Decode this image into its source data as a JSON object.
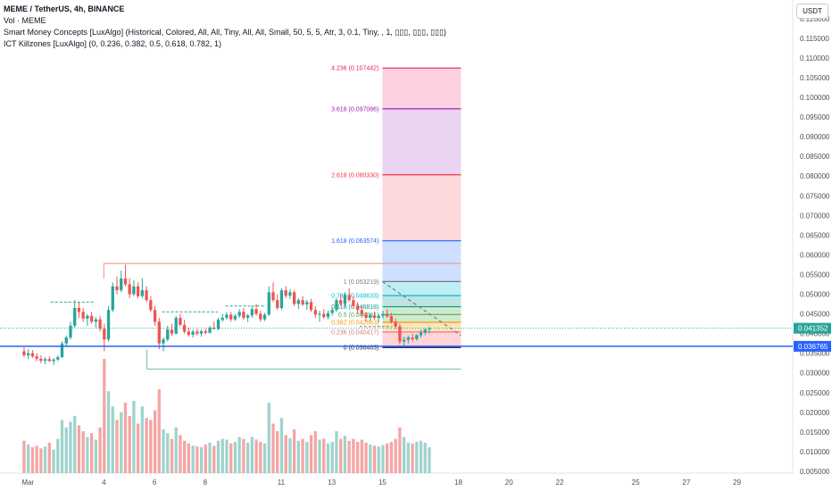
{
  "legend": {
    "symbol_line": "MEME / TetherUS, 4h, BINANCE",
    "vol_line": "Vol · MEME",
    "smc_line": "Smart Money Concepts [LuxAlgo] (Historical, Colored, All, All, Tiny, All, All, Small, 50, 5, 5, Atr, 3, 0.1, Tiny, , 1, ▯▯▯, ▯▯▯, ▯▯▯)",
    "ict_line": "ICT Killzones [LuxAlgo] (0, 0.236, 0.382, 0.5, 0.618, 0.782, 1)"
  },
  "currency_button": "USDT",
  "colors": {
    "up": "#26a69a",
    "down": "#ef5350",
    "vol_up": "#9fd3cd",
    "vol_down": "#f5a5a3",
    "price_tag": "#26a69a",
    "blue_line": "#2962ff"
  },
  "chart_data": {
    "type": "candlestick",
    "ylim": [
      0.005,
      0.122
    ],
    "y_ticks": [
      0.005,
      0.01,
      0.015,
      0.02,
      0.025,
      0.03,
      0.035,
      0.04,
      0.045,
      0.05,
      0.055,
      0.06,
      0.065,
      0.07,
      0.075,
      0.08,
      0.085,
      0.09,
      0.095,
      0.1,
      0.105,
      0.11,
      0.115,
      0.12
    ],
    "y_tick_labels": [
      "0.005000",
      "0.010000",
      "0.015000",
      "0.020000",
      "0.025000",
      "0.030000",
      "0.035000",
      "0.040000",
      "0.045000",
      "0.050000",
      "0.055000",
      "0.060000",
      "0.065000",
      "0.070000",
      "0.075000",
      "0.080000",
      "0.085000",
      "0.090000",
      "0.095000",
      "0.100000",
      "0.105000",
      "0.110000",
      "0.115000",
      "0.120000"
    ],
    "x_axis_labels": [
      {
        "label": "Mar",
        "day": 0.0
      },
      {
        "label": "4",
        "day": 3.0
      },
      {
        "label": "6",
        "day": 5.0
      },
      {
        "label": "8",
        "day": 7.0
      },
      {
        "label": "11",
        "day": 10.0
      },
      {
        "label": "13",
        "day": 12.0
      },
      {
        "label": "15",
        "day": 14.0
      },
      {
        "label": "18",
        "day": 17.0
      },
      {
        "label": "20",
        "day": 19.0
      },
      {
        "label": "22",
        "day": 21.0
      },
      {
        "label": "25",
        "day": 24.0
      },
      {
        "label": "27",
        "day": 26.0
      },
      {
        "label": "29",
        "day": 28.0
      }
    ],
    "x_range_days": [
      -1.1,
      30.2
    ],
    "candle_interval_days": 0.1667,
    "ohlc": [
      [
        0.0355,
        0.0365,
        0.034,
        0.0345
      ],
      [
        0.0345,
        0.036,
        0.0335,
        0.035
      ],
      [
        0.035,
        0.0358,
        0.0338,
        0.0342
      ],
      [
        0.0342,
        0.035,
        0.033,
        0.0336
      ],
      [
        0.0336,
        0.0345,
        0.0325,
        0.0331
      ],
      [
        0.0331,
        0.034,
        0.0322,
        0.0335
      ],
      [
        0.0335,
        0.0342,
        0.0328,
        0.033
      ],
      [
        0.033,
        0.0338,
        0.032,
        0.0334
      ],
      [
        0.0334,
        0.0345,
        0.033,
        0.034
      ],
      [
        0.034,
        0.038,
        0.0338,
        0.0375
      ],
      [
        0.0375,
        0.0395,
        0.0368,
        0.039
      ],
      [
        0.039,
        0.043,
        0.0385,
        0.042
      ],
      [
        0.042,
        0.0485,
        0.0415,
        0.0465
      ],
      [
        0.0465,
        0.048,
        0.044,
        0.0455
      ],
      [
        0.0455,
        0.0465,
        0.043,
        0.0438
      ],
      [
        0.0438,
        0.045,
        0.042,
        0.0445
      ],
      [
        0.0445,
        0.0455,
        0.0425,
        0.043
      ],
      [
        0.043,
        0.0442,
        0.0415,
        0.0436
      ],
      [
        0.0436,
        0.0445,
        0.0405,
        0.0412
      ],
      [
        0.0412,
        0.0425,
        0.0355,
        0.0385
      ],
      [
        0.0385,
        0.047,
        0.038,
        0.046
      ],
      [
        0.046,
        0.053,
        0.0455,
        0.052
      ],
      [
        0.052,
        0.0545,
        0.05,
        0.051
      ],
      [
        0.051,
        0.056,
        0.0505,
        0.054
      ],
      [
        0.054,
        0.0575,
        0.052,
        0.0525
      ],
      [
        0.0525,
        0.054,
        0.049,
        0.05
      ],
      [
        0.05,
        0.0535,
        0.0495,
        0.052
      ],
      [
        0.052,
        0.053,
        0.049,
        0.0495
      ],
      [
        0.0495,
        0.054,
        0.049,
        0.051
      ],
      [
        0.051,
        0.052,
        0.048,
        0.0485
      ],
      [
        0.0485,
        0.0495,
        0.0455,
        0.046
      ],
      [
        0.046,
        0.047,
        0.042,
        0.043
      ],
      [
        0.043,
        0.044,
        0.036,
        0.0375
      ],
      [
        0.0375,
        0.039,
        0.0355,
        0.0385
      ],
      [
        0.0385,
        0.042,
        0.038,
        0.041
      ],
      [
        0.041,
        0.0425,
        0.0395,
        0.04
      ],
      [
        0.04,
        0.0445,
        0.0398,
        0.044
      ],
      [
        0.044,
        0.045,
        0.0418,
        0.0422
      ],
      [
        0.0422,
        0.0435,
        0.04,
        0.0405
      ],
      [
        0.0405,
        0.0415,
        0.0392,
        0.0397
      ],
      [
        0.0397,
        0.041,
        0.039,
        0.0405
      ],
      [
        0.0405,
        0.0412,
        0.0395,
        0.04
      ],
      [
        0.04,
        0.041,
        0.0392,
        0.0406
      ],
      [
        0.0406,
        0.0412,
        0.0398,
        0.0402
      ],
      [
        0.0402,
        0.042,
        0.04,
        0.0415
      ],
      [
        0.0415,
        0.043,
        0.041,
        0.0412
      ],
      [
        0.0412,
        0.044,
        0.0408,
        0.0435
      ],
      [
        0.0435,
        0.045,
        0.043,
        0.044
      ],
      [
        0.044,
        0.0455,
        0.0435,
        0.0448
      ],
      [
        0.0448,
        0.0455,
        0.043,
        0.0436
      ],
      [
        0.0436,
        0.045,
        0.0432,
        0.0445
      ],
      [
        0.0445,
        0.0462,
        0.044,
        0.0455
      ],
      [
        0.0455,
        0.0465,
        0.0435,
        0.044
      ],
      [
        0.044,
        0.045,
        0.043,
        0.0446
      ],
      [
        0.0446,
        0.047,
        0.044,
        0.0462
      ],
      [
        0.0462,
        0.0475,
        0.0445,
        0.045
      ],
      [
        0.045,
        0.0458,
        0.043,
        0.0436
      ],
      [
        0.0436,
        0.0452,
        0.0432,
        0.0448
      ],
      [
        0.0448,
        0.052,
        0.0445,
        0.0505
      ],
      [
        0.0505,
        0.053,
        0.048,
        0.0485
      ],
      [
        0.0485,
        0.05,
        0.046,
        0.0465
      ],
      [
        0.0465,
        0.0515,
        0.046,
        0.051
      ],
      [
        0.051,
        0.052,
        0.049,
        0.0496
      ],
      [
        0.0496,
        0.0512,
        0.0488,
        0.0505
      ],
      [
        0.0505,
        0.051,
        0.047,
        0.0475
      ],
      [
        0.0475,
        0.049,
        0.0462,
        0.0485
      ],
      [
        0.0485,
        0.0495,
        0.047,
        0.0474
      ],
      [
        0.0474,
        0.0486,
        0.046,
        0.048
      ],
      [
        0.048,
        0.0488,
        0.0455,
        0.046
      ],
      [
        0.046,
        0.047,
        0.044,
        0.0448
      ],
      [
        0.0448,
        0.0458,
        0.043,
        0.045
      ],
      [
        0.045,
        0.0462,
        0.0438,
        0.0442
      ],
      [
        0.0442,
        0.0458,
        0.0436,
        0.0452
      ],
      [
        0.0452,
        0.0466,
        0.0445,
        0.046
      ],
      [
        0.046,
        0.049,
        0.0455,
        0.0485
      ],
      [
        0.0485,
        0.05,
        0.047,
        0.0475
      ],
      [
        0.0475,
        0.0505,
        0.047,
        0.0498
      ],
      [
        0.0498,
        0.0515,
        0.048,
        0.0485
      ],
      [
        0.0485,
        0.0495,
        0.0465,
        0.047
      ],
      [
        0.047,
        0.048,
        0.045,
        0.046
      ],
      [
        0.046,
        0.0472,
        0.044,
        0.0448
      ],
      [
        0.0448,
        0.0455,
        0.043,
        0.044
      ],
      [
        0.044,
        0.0452,
        0.0432,
        0.0446
      ],
      [
        0.0446,
        0.0456,
        0.0436,
        0.044
      ],
      [
        0.044,
        0.045,
        0.0428,
        0.0445
      ],
      [
        0.0445,
        0.0458,
        0.0438,
        0.045
      ],
      [
        0.045,
        0.0462,
        0.044,
        0.0444
      ],
      [
        0.0444,
        0.0452,
        0.0425,
        0.043
      ],
      [
        0.043,
        0.0438,
        0.0412,
        0.0418
      ],
      [
        0.0418,
        0.0425,
        0.0372,
        0.038
      ],
      [
        0.038,
        0.0392,
        0.0365,
        0.0384
      ],
      [
        0.0384,
        0.0395,
        0.0375,
        0.039
      ],
      [
        0.039,
        0.04,
        0.038,
        0.0386
      ],
      [
        0.0386,
        0.0398,
        0.0382,
        0.0396
      ],
      [
        0.0396,
        0.041,
        0.039,
        0.0402
      ],
      [
        0.0402,
        0.0415,
        0.0396,
        0.041
      ],
      [
        0.041,
        0.0418,
        0.04,
        0.0413
      ]
    ],
    "volume": [
      0.0085,
      0.0075,
      0.0068,
      0.0072,
      0.0065,
      0.007,
      0.008,
      0.0062,
      0.009,
      0.014,
      0.012,
      0.0135,
      0.015,
      0.0125,
      0.011,
      0.0095,
      0.0105,
      0.0088,
      0.012,
      0.03,
      0.0215,
      0.0175,
      0.014,
      0.016,
      0.0185,
      0.015,
      0.019,
      0.013,
      0.0175,
      0.0145,
      0.014,
      0.0165,
      0.022,
      0.0115,
      0.0105,
      0.009,
      0.012,
      0.01,
      0.0085,
      0.0078,
      0.0072,
      0.007,
      0.0068,
      0.0075,
      0.008,
      0.0072,
      0.0085,
      0.009,
      0.0088,
      0.0078,
      0.0082,
      0.0095,
      0.009,
      0.008,
      0.0095,
      0.0088,
      0.0082,
      0.0078,
      0.0185,
      0.013,
      0.011,
      0.0145,
      0.01,
      0.0092,
      0.0115,
      0.0085,
      0.009,
      0.0082,
      0.01,
      0.011,
      0.0088,
      0.009,
      0.0078,
      0.0082,
      0.011,
      0.009,
      0.0098,
      0.0085,
      0.009,
      0.0082,
      0.0088,
      0.008,
      0.0075,
      0.0072,
      0.007,
      0.0074,
      0.0078,
      0.0082,
      0.009,
      0.012,
      0.0095,
      0.008,
      0.0078,
      0.0082,
      0.0085,
      0.008,
      0.0068
    ],
    "volume_scale_max": 0.03,
    "current_price": {
      "value": 0.041352,
      "label": "0.041352"
    },
    "blue_line": {
      "value": 0.036765,
      "label": "0.036765"
    },
    "fib_levels": [
      {
        "ratio": 0.0,
        "price": 0.036463,
        "label": "0 (0.036463)",
        "color": "#131722"
      },
      {
        "ratio": 0.236,
        "price": 0.040417,
        "label": "0.236 (0.040417)",
        "color": "#e57373"
      },
      {
        "ratio": 0.382,
        "price": 0.042863,
        "label": "0.382 (0.042863)",
        "color": "#ff9800"
      },
      {
        "ratio": 0.5,
        "price": 0.044841,
        "label": "0.5 (0.044841)",
        "color": "#4caf50"
      },
      {
        "ratio": 0.618,
        "price": 0.046818,
        "label": "0.618 (0.046818)",
        "color": "#089981"
      },
      {
        "ratio": 0.786,
        "price": 0.049633,
        "label": "0.786 (0.049633)",
        "color": "#00bcd4"
      },
      {
        "ratio": 1.0,
        "price": 0.053219,
        "label": "1 (0.053219)",
        "color": "#787b86"
      },
      {
        "ratio": 1.618,
        "price": 0.063574,
        "label": "1.618 (0.063574)",
        "color": "#2962ff"
      },
      {
        "ratio": 2.618,
        "price": 0.08033,
        "label": "2.618 (0.080330)",
        "color": "#f23645"
      },
      {
        "ratio": 3.618,
        "price": 0.097086,
        "label": "3.618 (0.097086)",
        "color": "#9c27b0"
      },
      {
        "ratio": 4.236,
        "price": 0.107442,
        "label": "4.236 (0.107442)",
        "color": "#e91e63"
      }
    ],
    "fib_x_range_days": [
      14.0,
      17.1
    ],
    "fib_zones": [
      {
        "from": 0.036463,
        "to": 0.040417,
        "color": "#ffcdd2"
      },
      {
        "from": 0.040417,
        "to": 0.042863,
        "color": "#ffe0b2"
      },
      {
        "from": 0.042863,
        "to": 0.044841,
        "color": "#c8e6c9"
      },
      {
        "from": 0.044841,
        "to": 0.046818,
        "color": "#c8e6c9"
      },
      {
        "from": 0.046818,
        "to": 0.049633,
        "color": "#b2dfdb"
      },
      {
        "from": 0.049633,
        "to": 0.053219,
        "color": "#b2ebf2"
      },
      {
        "from": 0.053219,
        "to": 0.063574,
        "color": "#c5d9ff"
      },
      {
        "from": 0.063574,
        "to": 0.08033,
        "color": "#fcd1d5"
      },
      {
        "from": 0.08033,
        "to": 0.097086,
        "color": "#e6cdf0"
      },
      {
        "from": 0.097086,
        "to": 0.107442,
        "color": "#fcc8d8"
      }
    ],
    "trend_line": {
      "from": [
        14.0,
        0.053219
      ],
      "to": [
        17.1,
        0.0395
      ]
    },
    "structure_lines": [
      {
        "from_day": 3.0,
        "to_day": 17.1,
        "price": 0.0578,
        "color": "#f28b82"
      },
      {
        "from_day": 4.7,
        "to_day": 17.1,
        "price": 0.031,
        "color": "#66c2a5"
      },
      {
        "from_day": 3.0,
        "to_day": 3.0,
        "price_from": 0.054,
        "price_to": 0.0578,
        "color": "#f28b82"
      },
      {
        "from_day": 4.7,
        "to_day": 4.7,
        "price_from": 0.031,
        "price_to": 0.036,
        "color": "#66c2a5"
      }
    ],
    "dashed_levels": [
      {
        "from_day": 0.9,
        "to_day": 2.6,
        "price": 0.048,
        "color": "#26a69a"
      },
      {
        "from_day": 5.3,
        "to_day": 7.5,
        "price": 0.0455,
        "color": "#26a69a"
      },
      {
        "from_day": 7.8,
        "to_day": 9.4,
        "price": 0.047,
        "color": "#26a69a"
      },
      {
        "from_day": 13.1,
        "to_day": 14.4,
        "price": 0.0418,
        "color": "#787b86"
      }
    ]
  }
}
